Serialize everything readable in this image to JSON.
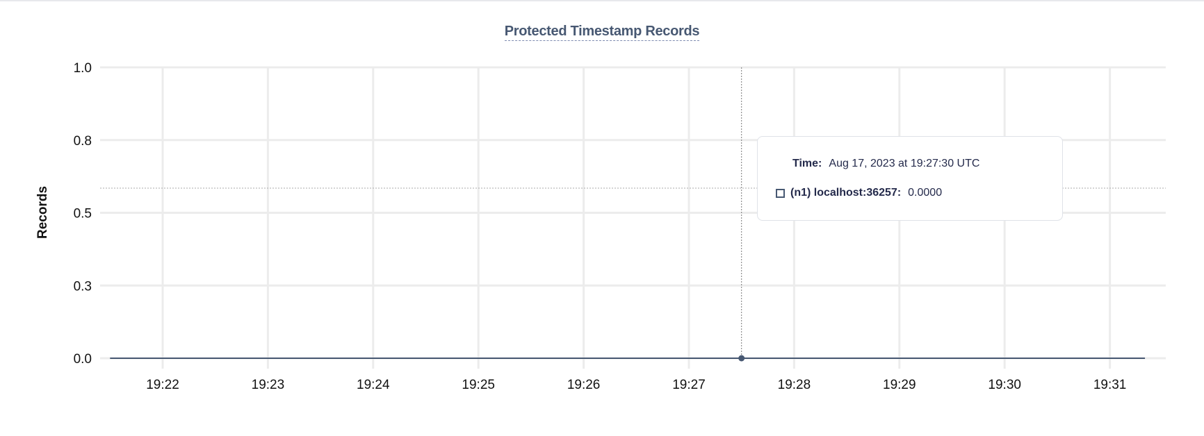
{
  "chart_data": {
    "type": "line",
    "title": "Protected Timestamp Records",
    "xlabel": "",
    "ylabel": "Records",
    "x_ticks": [
      "19:22",
      "19:23",
      "19:24",
      "19:25",
      "19:26",
      "19:27",
      "19:28",
      "19:29",
      "19:30",
      "19:31"
    ],
    "y_ticks": [
      {
        "value": 0,
        "label": "0.0"
      },
      {
        "value": 0.25,
        "label": "0.3"
      },
      {
        "value": 0.5,
        "label": "0.5"
      },
      {
        "value": 0.75,
        "label": "0.8"
      },
      {
        "value": 1,
        "label": "1.0"
      }
    ],
    "ylim": [
      0,
      1
    ],
    "xlim": [
      "19:21:15",
      "19:31:45"
    ],
    "grid": true,
    "series": [
      {
        "name": "(n1) localhost:36257",
        "color": "#475872",
        "points": [
          {
            "x": "19:21:30",
            "y": 0
          },
          {
            "x": "19:27:30",
            "y": 0
          },
          {
            "x": "19:31:20",
            "y": 0
          }
        ]
      }
    ],
    "hover": {
      "x": "19:27:30",
      "y": 0
    }
  },
  "tooltip": {
    "time_label": "Time:",
    "time_value": "Aug 17, 2023 at 19:27:30 UTC",
    "series_label": "(n1) localhost:36257:",
    "series_value": "0.0000"
  }
}
